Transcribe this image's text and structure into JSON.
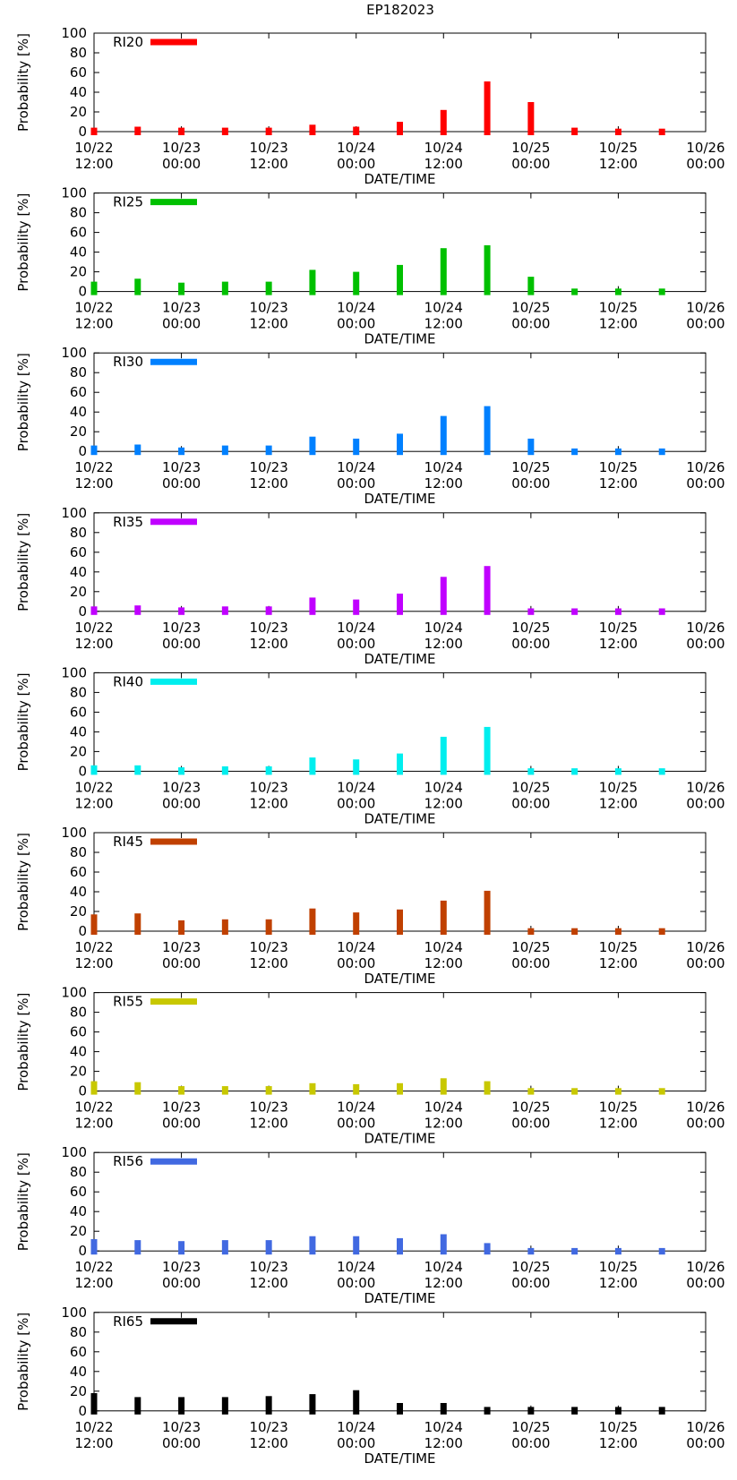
{
  "figure_title": "EP182023",
  "chart_data": [
    {
      "type": "bar",
      "legend": "RI20",
      "color": "#ff0000",
      "ylabel": "Probability [%]",
      "xlabel": "DATE/TIME",
      "ylim": [
        0,
        100
      ],
      "yticks": [
        "0",
        "20",
        "40",
        "60",
        "80",
        "100"
      ],
      "xticks": [
        [
          "10/22",
          "12:00"
        ],
        [
          "10/23",
          "00:00"
        ],
        [
          "10/23",
          "12:00"
        ],
        [
          "10/24",
          "00:00"
        ],
        [
          "10/24",
          "12:00"
        ],
        [
          "10/25",
          "00:00"
        ],
        [
          "10/25",
          "12:00"
        ],
        [
          "10/26",
          "00:00"
        ]
      ],
      "values": [
        4,
        5,
        4,
        4,
        4,
        7,
        5,
        10,
        22,
        51,
        30,
        4,
        3,
        3
      ]
    },
    {
      "type": "bar",
      "legend": "RI25",
      "color": "#00c000",
      "ylabel": "Probability [%]",
      "xlabel": "DATE/TIME",
      "ylim": [
        0,
        100
      ],
      "yticks": [
        "0",
        "20",
        "40",
        "60",
        "80",
        "100"
      ],
      "xticks": [
        [
          "10/22",
          "12:00"
        ],
        [
          "10/23",
          "00:00"
        ],
        [
          "10/23",
          "12:00"
        ],
        [
          "10/24",
          "00:00"
        ],
        [
          "10/24",
          "12:00"
        ],
        [
          "10/25",
          "00:00"
        ],
        [
          "10/25",
          "12:00"
        ],
        [
          "10/26",
          "00:00"
        ]
      ],
      "values": [
        10,
        13,
        9,
        10,
        10,
        22,
        20,
        27,
        44,
        47,
        15,
        3,
        3,
        3
      ]
    },
    {
      "type": "bar",
      "legend": "RI30",
      "color": "#0080ff",
      "ylabel": "Probability [%]",
      "xlabel": "DATE/TIME",
      "ylim": [
        0,
        100
      ],
      "yticks": [
        "0",
        "20",
        "40",
        "60",
        "80",
        "100"
      ],
      "xticks": [
        [
          "10/22",
          "12:00"
        ],
        [
          "10/23",
          "00:00"
        ],
        [
          "10/23",
          "12:00"
        ],
        [
          "10/24",
          "00:00"
        ],
        [
          "10/24",
          "12:00"
        ],
        [
          "10/25",
          "00:00"
        ],
        [
          "10/25",
          "12:00"
        ],
        [
          "10/26",
          "00:00"
        ]
      ],
      "values": [
        6,
        7,
        4,
        6,
        6,
        15,
        13,
        18,
        36,
        46,
        13,
        3,
        3,
        3
      ]
    },
    {
      "type": "bar",
      "legend": "RI35",
      "color": "#c000ff",
      "ylabel": "Probability [%]",
      "xlabel": "DATE/TIME",
      "ylim": [
        0,
        100
      ],
      "yticks": [
        "0",
        "20",
        "40",
        "60",
        "80",
        "100"
      ],
      "xticks": [
        [
          "10/22",
          "12:00"
        ],
        [
          "10/23",
          "00:00"
        ],
        [
          "10/23",
          "12:00"
        ],
        [
          "10/24",
          "00:00"
        ],
        [
          "10/24",
          "12:00"
        ],
        [
          "10/25",
          "00:00"
        ],
        [
          "10/25",
          "12:00"
        ],
        [
          "10/26",
          "00:00"
        ]
      ],
      "values": [
        5,
        6,
        4,
        5,
        5,
        14,
        12,
        18,
        35,
        46,
        3,
        3,
        3,
        3
      ]
    },
    {
      "type": "bar",
      "legend": "RI40",
      "color": "#00eeee",
      "ylabel": "Probability [%]",
      "xlabel": "DATE/TIME",
      "ylim": [
        0,
        100
      ],
      "yticks": [
        "0",
        "20",
        "40",
        "60",
        "80",
        "100"
      ],
      "xticks": [
        [
          "10/22",
          "12:00"
        ],
        [
          "10/23",
          "00:00"
        ],
        [
          "10/23",
          "12:00"
        ],
        [
          "10/24",
          "00:00"
        ],
        [
          "10/24",
          "12:00"
        ],
        [
          "10/25",
          "00:00"
        ],
        [
          "10/25",
          "12:00"
        ],
        [
          "10/26",
          "00:00"
        ]
      ],
      "values": [
        6,
        6,
        4,
        5,
        5,
        14,
        12,
        18,
        35,
        45,
        3,
        3,
        3,
        3
      ]
    },
    {
      "type": "bar",
      "legend": "RI45",
      "color": "#c04000",
      "ylabel": "Probability [%]",
      "xlabel": "DATE/TIME",
      "ylim": [
        0,
        100
      ],
      "yticks": [
        "0",
        "20",
        "40",
        "60",
        "80",
        "100"
      ],
      "xticks": [
        [
          "10/22",
          "12:00"
        ],
        [
          "10/23",
          "00:00"
        ],
        [
          "10/23",
          "12:00"
        ],
        [
          "10/24",
          "00:00"
        ],
        [
          "10/24",
          "12:00"
        ],
        [
          "10/25",
          "00:00"
        ],
        [
          "10/25",
          "12:00"
        ],
        [
          "10/26",
          "00:00"
        ]
      ],
      "values": [
        17,
        18,
        11,
        12,
        12,
        23,
        19,
        22,
        31,
        41,
        3,
        3,
        3,
        3
      ]
    },
    {
      "type": "bar",
      "legend": "RI55",
      "color": "#c8c800",
      "ylabel": "Probability [%]",
      "xlabel": "DATE/TIME",
      "ylim": [
        0,
        100
      ],
      "yticks": [
        "0",
        "20",
        "40",
        "60",
        "80",
        "100"
      ],
      "xticks": [
        [
          "10/22",
          "12:00"
        ],
        [
          "10/23",
          "00:00"
        ],
        [
          "10/23",
          "12:00"
        ],
        [
          "10/24",
          "00:00"
        ],
        [
          "10/24",
          "12:00"
        ],
        [
          "10/25",
          "00:00"
        ],
        [
          "10/25",
          "12:00"
        ],
        [
          "10/26",
          "00:00"
        ]
      ],
      "values": [
        10,
        9,
        5,
        5,
        5,
        8,
        7,
        8,
        13,
        10,
        3,
        3,
        3,
        3
      ]
    },
    {
      "type": "bar",
      "legend": "RI56",
      "color": "#4169e1",
      "ylabel": "Probability [%]",
      "xlabel": "DATE/TIME",
      "ylim": [
        0,
        100
      ],
      "yticks": [
        "0",
        "20",
        "40",
        "60",
        "80",
        "100"
      ],
      "xticks": [
        [
          "10/22",
          "12:00"
        ],
        [
          "10/23",
          "00:00"
        ],
        [
          "10/23",
          "12:00"
        ],
        [
          "10/24",
          "00:00"
        ],
        [
          "10/24",
          "12:00"
        ],
        [
          "10/25",
          "00:00"
        ],
        [
          "10/25",
          "12:00"
        ],
        [
          "10/26",
          "00:00"
        ]
      ],
      "values": [
        12,
        11,
        10,
        11,
        11,
        15,
        15,
        13,
        17,
        8,
        3,
        3,
        3,
        3
      ]
    },
    {
      "type": "bar",
      "legend": "RI65",
      "color": "#000000",
      "ylabel": "Probability [%]",
      "xlabel": "DATE/TIME",
      "ylim": [
        0,
        100
      ],
      "yticks": [
        "0",
        "20",
        "40",
        "60",
        "80",
        "100"
      ],
      "xticks": [
        [
          "10/22",
          "12:00"
        ],
        [
          "10/23",
          "00:00"
        ],
        [
          "10/23",
          "12:00"
        ],
        [
          "10/24",
          "00:00"
        ],
        [
          "10/24",
          "12:00"
        ],
        [
          "10/25",
          "00:00"
        ],
        [
          "10/25",
          "12:00"
        ],
        [
          "10/26",
          "00:00"
        ]
      ],
      "values": [
        18,
        14,
        14,
        14,
        15,
        17,
        21,
        8,
        8,
        4,
        4,
        4,
        4,
        4
      ]
    }
  ]
}
